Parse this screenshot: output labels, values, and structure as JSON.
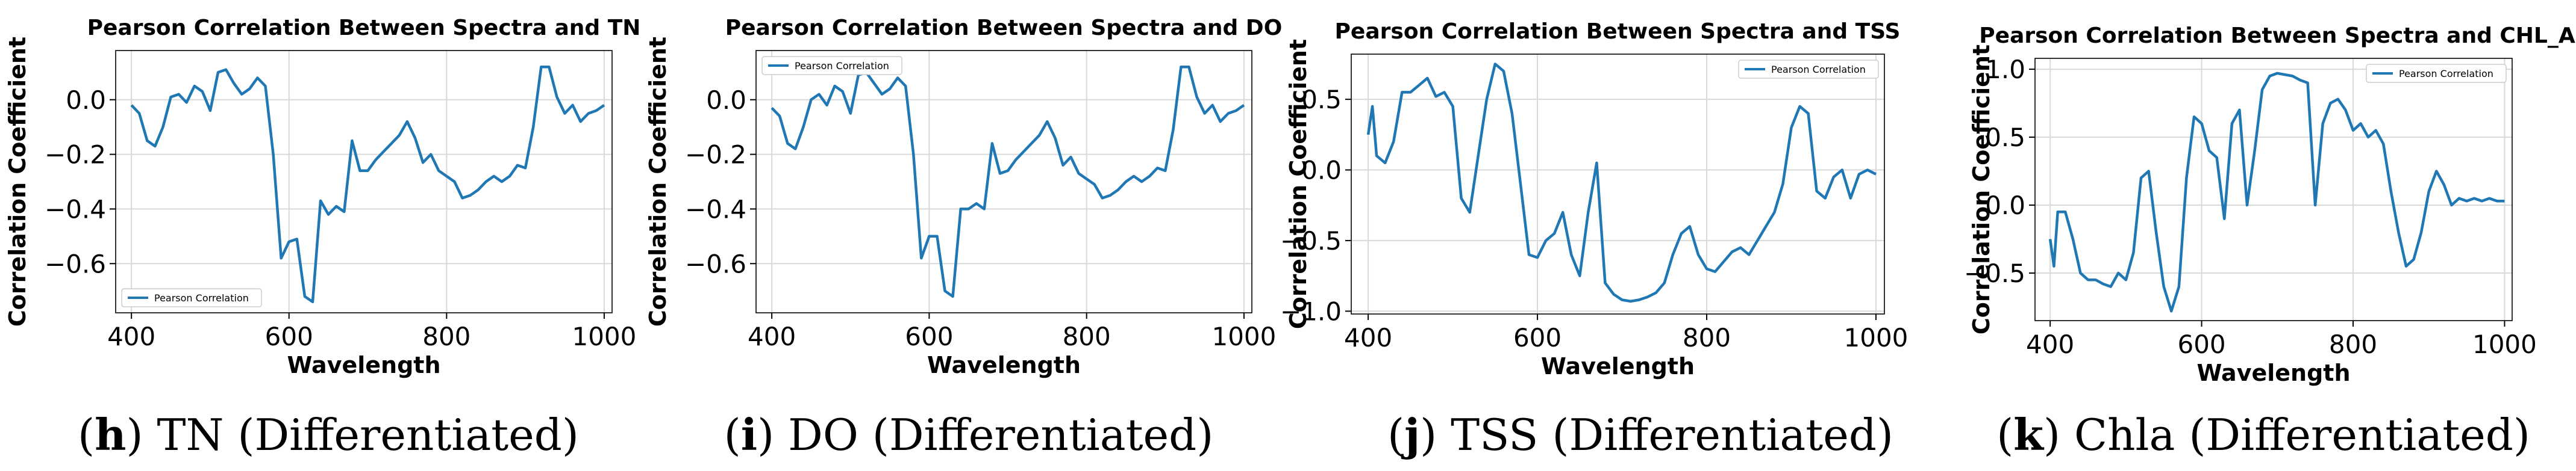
{
  "chart_data": [
    {
      "type": "line",
      "title": "Pearson Correlation Between Spectra and TN",
      "xlabel": "Wavelength",
      "ylabel": "Correlation Coefficient",
      "xlim": [
        380,
        1010
      ],
      "ylim": [
        -0.78,
        0.18
      ],
      "xticks": [
        400,
        600,
        800,
        1000
      ],
      "xtick_labels": [
        "400",
        "600",
        "800",
        "1000"
      ],
      "yticks": [
        0.0,
        -0.2,
        -0.4,
        -0.6
      ],
      "ytick_labels": [
        "0.0",
        "−0.2",
        "−0.4",
        "−0.6"
      ],
      "grid": true,
      "legend": {
        "label": "Pearson Correlation",
        "location": "lower-left"
      },
      "caption": {
        "letter": "h",
        "text": "TN (Differentiated)"
      },
      "series": [
        {
          "name": "Pearson Correlation",
          "x": [
            400,
            410,
            420,
            430,
            440,
            450,
            460,
            470,
            480,
            490,
            500,
            510,
            520,
            530,
            540,
            550,
            560,
            570,
            580,
            590,
            600,
            610,
            620,
            630,
            640,
            650,
            660,
            670,
            680,
            690,
            700,
            710,
            720,
            730,
            740,
            750,
            760,
            770,
            780,
            790,
            800,
            810,
            820,
            830,
            840,
            850,
            860,
            870,
            880,
            890,
            900,
            910,
            920,
            930,
            940,
            950,
            960,
            970,
            980,
            990,
            1000
          ],
          "y": [
            -0.02,
            -0.05,
            -0.15,
            -0.17,
            -0.1,
            0.01,
            0.02,
            -0.01,
            0.05,
            0.03,
            -0.04,
            0.1,
            0.11,
            0.06,
            0.02,
            0.04,
            0.08,
            0.05,
            -0.2,
            -0.58,
            -0.52,
            -0.51,
            -0.72,
            -0.74,
            -0.37,
            -0.42,
            -0.39,
            -0.41,
            -0.15,
            -0.26,
            -0.26,
            -0.22,
            -0.19,
            -0.16,
            -0.13,
            -0.08,
            -0.14,
            -0.23,
            -0.2,
            -0.26,
            -0.28,
            -0.3,
            -0.36,
            -0.35,
            -0.33,
            -0.3,
            -0.28,
            -0.3,
            -0.28,
            -0.24,
            -0.25,
            -0.1,
            0.12,
            0.12,
            0.01,
            -0.05,
            -0.02,
            -0.08,
            -0.05,
            -0.04,
            -0.02
          ]
        }
      ]
    },
    {
      "type": "line",
      "title": "Pearson Correlation Between Spectra and DO",
      "xlabel": "Wavelength",
      "ylabel": "Correlation Coefficient",
      "xlim": [
        380,
        1010
      ],
      "ylim": [
        -0.78,
        0.18
      ],
      "xticks": [
        400,
        600,
        800,
        1000
      ],
      "xtick_labels": [
        "400",
        "600",
        "800",
        "1000"
      ],
      "yticks": [
        0.0,
        -0.2,
        -0.4,
        -0.6
      ],
      "ytick_labels": [
        "0.0",
        "−0.2",
        "−0.4",
        "−0.6"
      ],
      "grid": true,
      "legend": {
        "label": "Pearson Correlation",
        "location": "upper-left"
      },
      "caption": {
        "letter": "i",
        "text": "DO (Differentiated)"
      },
      "series": [
        {
          "name": "Pearson Correlation",
          "x": [
            400,
            410,
            420,
            430,
            440,
            450,
            460,
            470,
            480,
            490,
            500,
            510,
            520,
            530,
            540,
            550,
            560,
            570,
            580,
            590,
            600,
            610,
            620,
            630,
            640,
            650,
            660,
            670,
            680,
            690,
            700,
            710,
            720,
            730,
            740,
            750,
            760,
            770,
            780,
            790,
            800,
            810,
            820,
            830,
            840,
            850,
            860,
            870,
            880,
            890,
            900,
            910,
            920,
            930,
            940,
            950,
            960,
            970,
            980,
            990,
            1000
          ],
          "y": [
            -0.03,
            -0.06,
            -0.16,
            -0.18,
            -0.1,
            0.0,
            0.02,
            -0.02,
            0.05,
            0.03,
            -0.05,
            0.09,
            0.1,
            0.06,
            0.02,
            0.04,
            0.08,
            0.05,
            -0.2,
            -0.58,
            -0.5,
            -0.5,
            -0.7,
            -0.72,
            -0.4,
            -0.4,
            -0.38,
            -0.4,
            -0.16,
            -0.27,
            -0.26,
            -0.22,
            -0.19,
            -0.16,
            -0.13,
            -0.08,
            -0.14,
            -0.24,
            -0.21,
            -0.27,
            -0.29,
            -0.31,
            -0.36,
            -0.35,
            -0.33,
            -0.3,
            -0.28,
            -0.3,
            -0.28,
            -0.25,
            -0.26,
            -0.11,
            0.12,
            0.12,
            0.01,
            -0.05,
            -0.02,
            -0.08,
            -0.05,
            -0.04,
            -0.02
          ]
        }
      ]
    },
    {
      "type": "line",
      "title": "Pearson Correlation Between Spectra and TSS",
      "xlabel": "Wavelength",
      "ylabel": "Correlation Coefficient",
      "xlim": [
        380,
        1010
      ],
      "ylim": [
        -1.02,
        0.82
      ],
      "xticks": [
        400,
        600,
        800,
        1000
      ],
      "xtick_labels": [
        "400",
        "600",
        "800",
        "1000"
      ],
      "yticks": [
        0.5,
        0.0,
        -0.5,
        -1.0
      ],
      "ytick_labels": [
        "0.5",
        "0.0",
        "−0.5",
        "−1.0"
      ],
      "grid": true,
      "legend": {
        "label": "Pearson Correlation",
        "location": "upper-right"
      },
      "caption": {
        "letter": "j",
        "text": "TSS (Differentiated)"
      },
      "series": [
        {
          "name": "Pearson Correlation",
          "x": [
            400,
            405,
            410,
            420,
            430,
            440,
            450,
            460,
            470,
            480,
            490,
            500,
            510,
            520,
            530,
            540,
            550,
            560,
            570,
            580,
            590,
            600,
            610,
            620,
            630,
            640,
            650,
            660,
            670,
            680,
            690,
            700,
            710,
            720,
            730,
            740,
            750,
            760,
            770,
            780,
            790,
            800,
            810,
            820,
            830,
            840,
            850,
            860,
            870,
            880,
            890,
            900,
            910,
            920,
            930,
            940,
            950,
            960,
            970,
            980,
            990,
            1000
          ],
          "y": [
            0.25,
            0.45,
            0.1,
            0.05,
            0.2,
            0.55,
            0.55,
            0.6,
            0.65,
            0.52,
            0.55,
            0.45,
            -0.2,
            -0.3,
            0.1,
            0.5,
            0.75,
            0.7,
            0.4,
            -0.1,
            -0.6,
            -0.62,
            -0.5,
            -0.45,
            -0.3,
            -0.6,
            -0.75,
            -0.3,
            0.05,
            -0.8,
            -0.88,
            -0.92,
            -0.93,
            -0.92,
            -0.9,
            -0.87,
            -0.8,
            -0.6,
            -0.45,
            -0.4,
            -0.6,
            -0.7,
            -0.72,
            -0.65,
            -0.58,
            -0.55,
            -0.6,
            -0.5,
            -0.4,
            -0.3,
            -0.1,
            0.3,
            0.45,
            0.4,
            -0.15,
            -0.2,
            -0.05,
            0.0,
            -0.2,
            -0.03,
            0.0,
            -0.03
          ]
        }
      ]
    },
    {
      "type": "line",
      "title": "Pearson Correlation Between Spectra and CHL_A",
      "xlabel": "Wavelength",
      "ylabel": "Correlation Coefficient",
      "xlim": [
        380,
        1010
      ],
      "ylim": [
        -0.85,
        1.08
      ],
      "xticks": [
        400,
        600,
        800,
        1000
      ],
      "xtick_labels": [
        "400",
        "600",
        "800",
        "1000"
      ],
      "yticks": [
        1.0,
        0.5,
        0.0,
        -0.5
      ],
      "ytick_labels": [
        "1.0",
        "0.5",
        "0.0",
        "−0.5"
      ],
      "grid": true,
      "legend": {
        "label": "Pearson Correlation",
        "location": "upper-right"
      },
      "caption": {
        "letter": "k",
        "text": "Chla (Differentiated)"
      },
      "series": [
        {
          "name": "Pearson Correlation",
          "x": [
            400,
            405,
            410,
            420,
            430,
            440,
            450,
            460,
            470,
            480,
            490,
            500,
            510,
            520,
            530,
            540,
            550,
            560,
            570,
            580,
            590,
            600,
            610,
            620,
            630,
            640,
            650,
            660,
            670,
            680,
            690,
            700,
            710,
            720,
            730,
            740,
            750,
            760,
            770,
            780,
            790,
            800,
            810,
            820,
            830,
            840,
            850,
            860,
            870,
            880,
            890,
            900,
            910,
            920,
            930,
            940,
            950,
            960,
            970,
            980,
            990,
            1000
          ],
          "y": [
            -0.25,
            -0.45,
            -0.05,
            -0.05,
            -0.25,
            -0.5,
            -0.55,
            -0.55,
            -0.58,
            -0.6,
            -0.5,
            -0.55,
            -0.35,
            0.2,
            0.25,
            -0.2,
            -0.6,
            -0.78,
            -0.6,
            0.2,
            0.65,
            0.6,
            0.4,
            0.35,
            -0.1,
            0.6,
            0.7,
            0.0,
            0.4,
            0.85,
            0.95,
            0.97,
            0.96,
            0.95,
            0.92,
            0.9,
            0.0,
            0.6,
            0.75,
            0.78,
            0.7,
            0.55,
            0.6,
            0.5,
            0.55,
            0.45,
            0.1,
            -0.2,
            -0.45,
            -0.4,
            -0.2,
            0.1,
            0.25,
            0.15,
            0.0,
            0.05,
            0.03,
            0.05,
            0.03,
            0.05,
            0.03,
            0.03
          ]
        }
      ]
    }
  ],
  "colors": {
    "line": "#1f77b4",
    "grid": "#d9d9d9",
    "frame": "#000000"
  }
}
